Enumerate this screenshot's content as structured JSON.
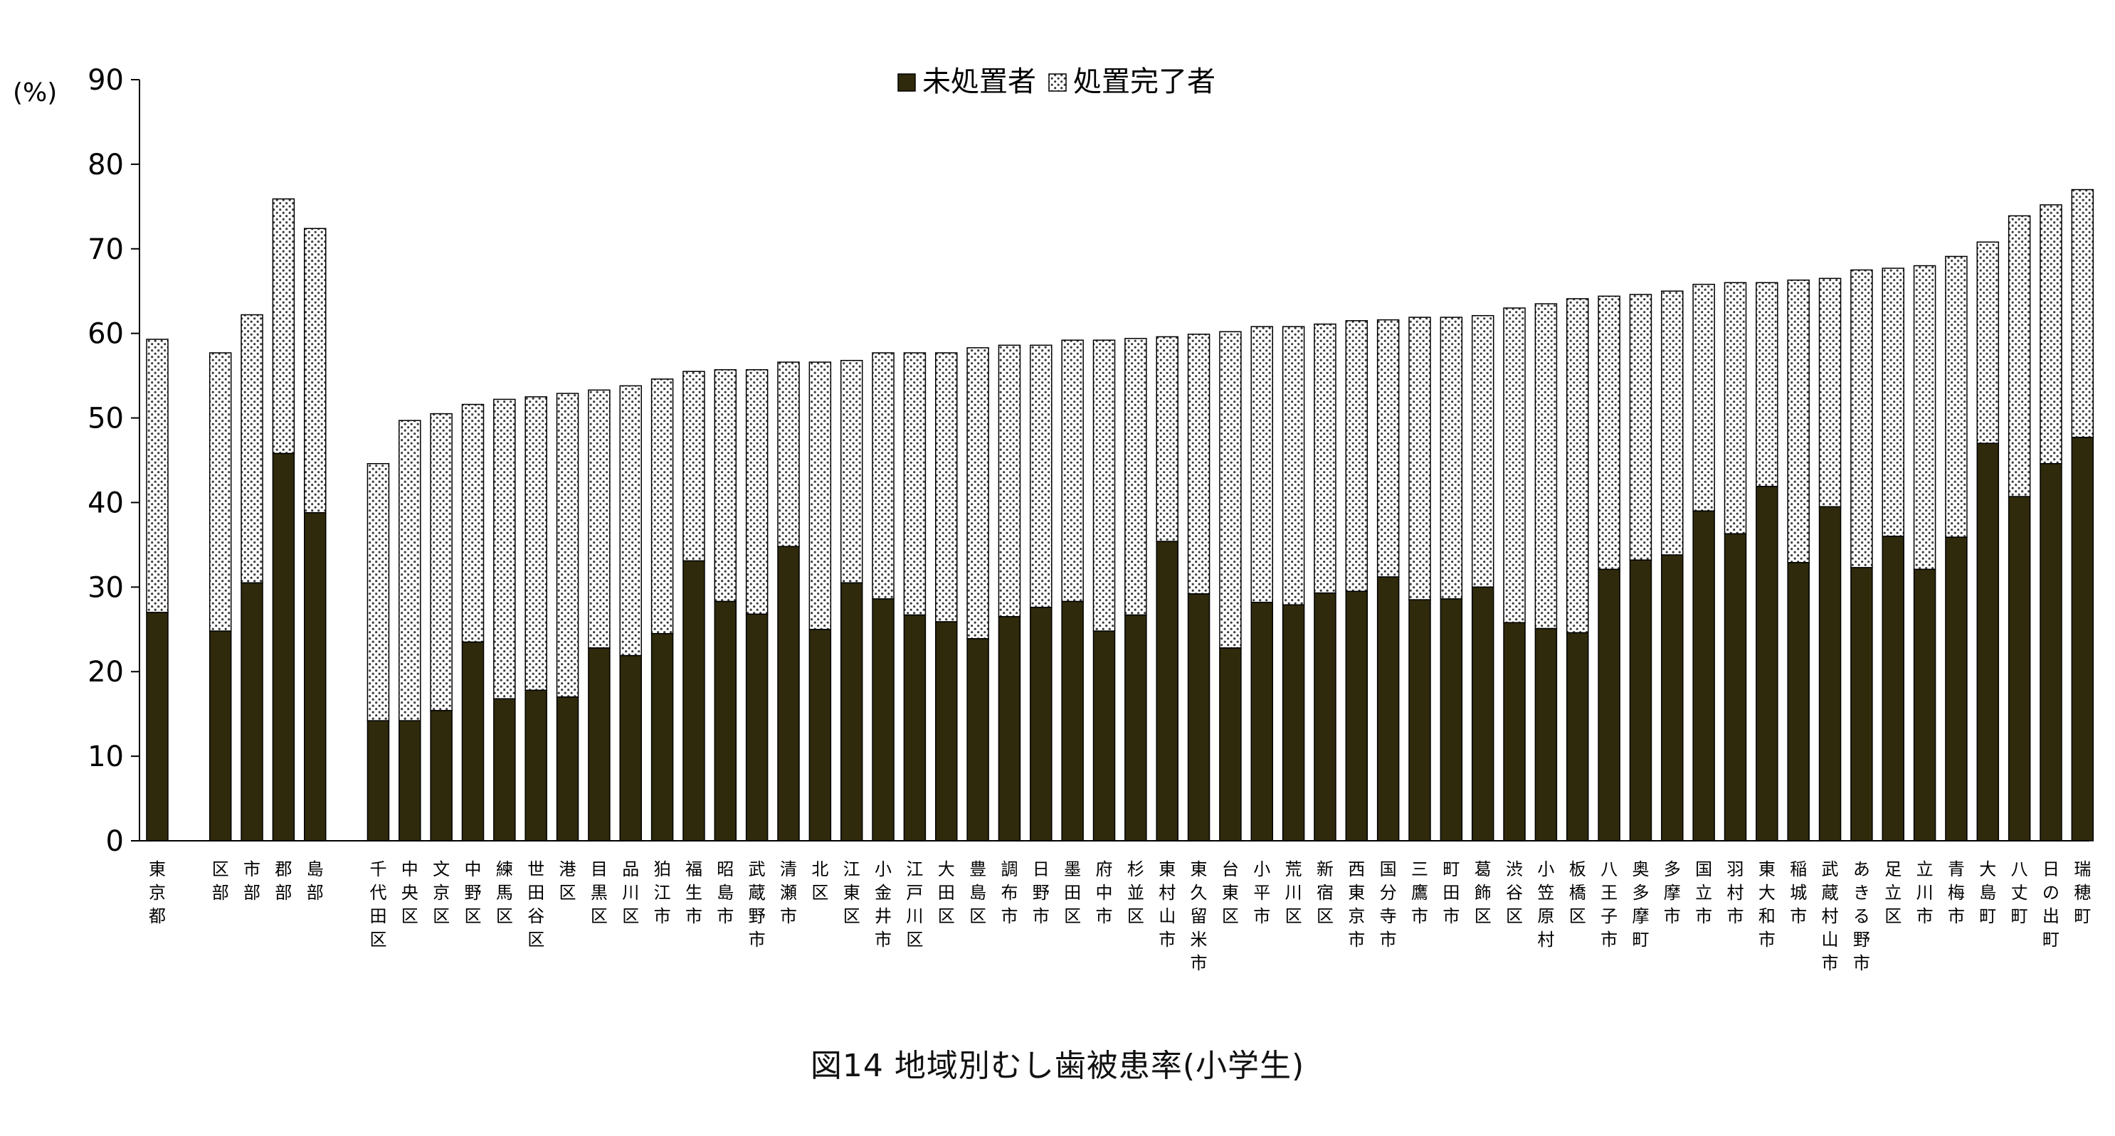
{
  "chart_data": {
    "type": "bar",
    "stacked": true,
    "title": "図14 地域別むし歯被患率(小学生)",
    "ylabel": "(%)",
    "xlabel": "",
    "ylim": [
      0,
      90
    ],
    "yticks": [
      0,
      10,
      20,
      30,
      40,
      50,
      60,
      70,
      80,
      90
    ],
    "grid": false,
    "legend_position": "top",
    "colors": {
      "untreated": "#2f2a0c",
      "treated_fill": "#ffffff",
      "treated_dots": "#3a3a3a",
      "axis": "#000000"
    },
    "series": [
      {
        "name": "未処置者",
        "pattern": "solid"
      },
      {
        "name": "処置完了者",
        "pattern": "dotted"
      }
    ],
    "categories": [
      "東京都",
      "",
      "区部",
      "市部",
      "郡部",
      "島部",
      "",
      "千代田区",
      "中央区",
      "文京区",
      "中野区",
      "練馬区",
      "世田谷区",
      "港区",
      "目黒区",
      "品川区",
      "狛江市",
      "福生市",
      "昭島市",
      "武蔵野市",
      "清瀬市",
      "北区",
      "江東区",
      "小金井市",
      "江戸川区",
      "大田区",
      "豊島区",
      "調布市",
      "日野市",
      "墨田区",
      "府中市",
      "杉並区",
      "東村山市",
      "東久留米市",
      "台東区",
      "小平市",
      "荒川区",
      "新宿区",
      "西東京市",
      "国分寺市",
      "三鷹市",
      "町田市",
      "葛飾区",
      "渋谷区",
      "小笠原村",
      "板橋区",
      "八王子市",
      "奥多摩町",
      "多摩市",
      "国立市",
      "羽村市",
      "東大和市",
      "稲城市",
      "武蔵村山市",
      "あきる野市",
      "足立区",
      "立川市",
      "青梅市",
      "大島町",
      "八丈町",
      "日の出町",
      "瑞穂町"
    ],
    "untreated": [
      27.0,
      null,
      24.8,
      30.5,
      45.8,
      38.8,
      null,
      14.2,
      14.2,
      15.4,
      23.5,
      16.8,
      17.8,
      17.0,
      22.8,
      21.9,
      24.5,
      33.1,
      28.3,
      26.8,
      34.8,
      25.0,
      30.5,
      28.6,
      26.7,
      25.9,
      23.9,
      26.5,
      27.6,
      28.3,
      24.8,
      26.7,
      35.4,
      29.2,
      22.8,
      28.2,
      27.9,
      29.3,
      29.5,
      31.2,
      28.5,
      28.6,
      30.0,
      25.8,
      25.1,
      24.6,
      32.1,
      33.2,
      33.8,
      39.0,
      36.3,
      41.9,
      32.9,
      39.5,
      32.3,
      36.0,
      32.1,
      35.9,
      47.0,
      40.7,
      44.6,
      47.7
    ],
    "total": [
      59.3,
      null,
      57.7,
      62.2,
      75.9,
      72.4,
      null,
      44.6,
      49.7,
      50.5,
      51.6,
      52.2,
      52.5,
      52.9,
      53.3,
      53.8,
      54.6,
      55.5,
      55.7,
      55.7,
      56.6,
      56.6,
      56.8,
      57.7,
      57.7,
      57.7,
      58.3,
      58.6,
      58.6,
      59.2,
      59.2,
      59.4,
      59.6,
      59.9,
      60.2,
      60.8,
      60.8,
      61.1,
      61.5,
      61.6,
      61.9,
      61.9,
      62.1,
      63.0,
      63.5,
      64.1,
      64.4,
      64.6,
      65.0,
      65.8,
      66.0,
      66.0,
      66.3,
      66.5,
      67.5,
      67.7,
      68.0,
      69.1,
      70.8,
      73.9,
      75.2,
      77.0
    ]
  }
}
